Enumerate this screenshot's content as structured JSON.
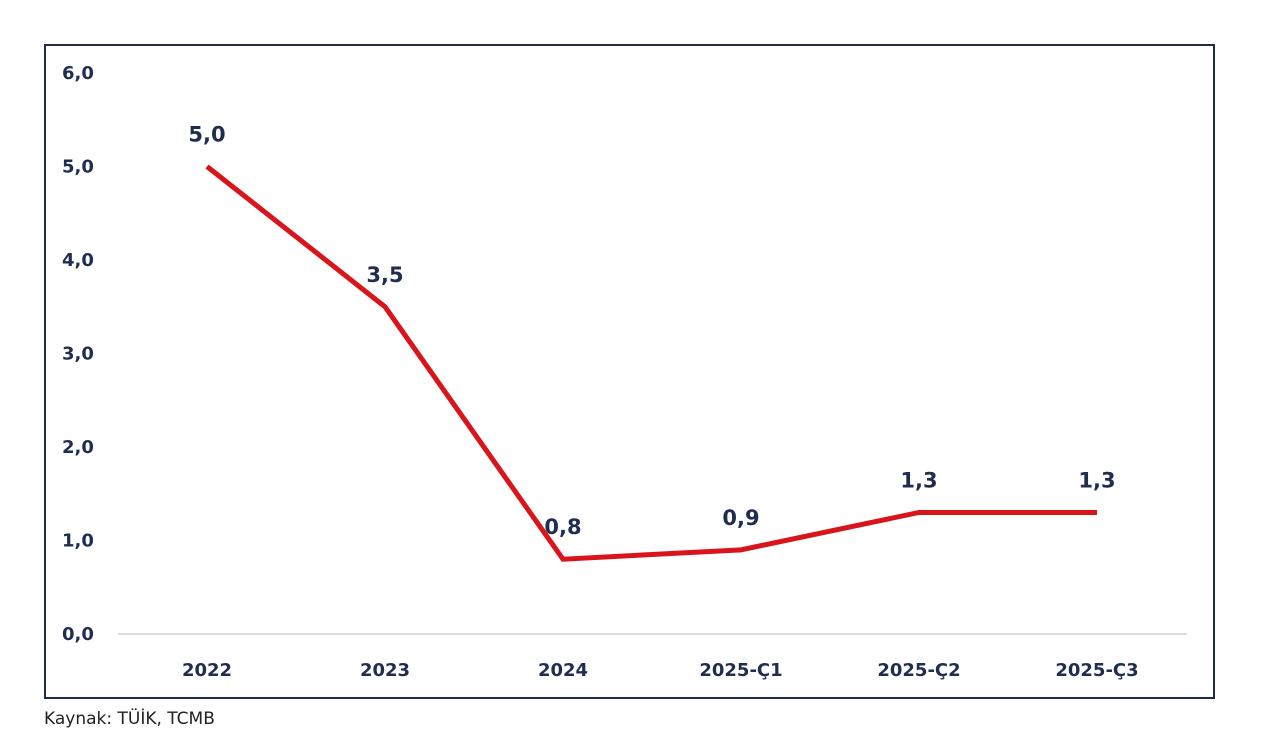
{
  "chart_data": {
    "type": "line",
    "categories": [
      "2022",
      "2023",
      "2024",
      "2025-Ç1",
      "2025-Ç2",
      "2025-Ç3"
    ],
    "series": [
      {
        "values": [
          5.0,
          3.5,
          0.8,
          0.9,
          1.3,
          1.3
        ],
        "labels": [
          "5,0",
          "3,5",
          "0,8",
          "0,9",
          "1,3",
          "1,3"
        ]
      }
    ],
    "yticks": [
      "0,0",
      "1,0",
      "2,0",
      "3,0",
      "4,0",
      "5,0",
      "6,0"
    ],
    "ylim": [
      0,
      6
    ],
    "grid": false,
    "colors": {
      "line": "#d9141a",
      "text": "#1f2d50",
      "axis": "#d0d0d0",
      "frame": "#1f2d4a"
    }
  },
  "footer": {
    "source": "Kaynak: TÜİK, TCMB"
  }
}
